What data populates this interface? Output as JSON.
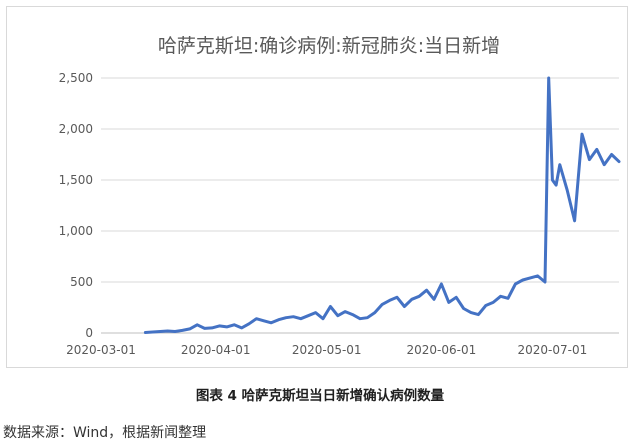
{
  "chart_data": {
    "type": "line",
    "title": "哈萨克斯坦:确诊病例:新冠肺炎:当日新增",
    "xlabel": "",
    "ylabel": "",
    "ylim": [
      0,
      2500
    ],
    "y_ticks": [
      "0",
      "500",
      "1,000",
      "1,500",
      "2,000",
      "2,500"
    ],
    "x_ticks": [
      "2020-03-01",
      "2020-04-01",
      "2020-05-01",
      "2020-06-01",
      "2020-07-01"
    ],
    "grid": true,
    "legend": "none",
    "line_color": "#4472C4",
    "series": [
      {
        "x": [
          "2020-03-13",
          "2020-03-15",
          "2020-03-17",
          "2020-03-19",
          "2020-03-21",
          "2020-03-23",
          "2020-03-25",
          "2020-03-27",
          "2020-03-29",
          "2020-03-31",
          "2020-04-02",
          "2020-04-04",
          "2020-04-06",
          "2020-04-08",
          "2020-04-10",
          "2020-04-12",
          "2020-04-14",
          "2020-04-16",
          "2020-04-18",
          "2020-04-20",
          "2020-04-22",
          "2020-04-24",
          "2020-04-26",
          "2020-04-28",
          "2020-04-30",
          "2020-05-02",
          "2020-05-04",
          "2020-05-06",
          "2020-05-08",
          "2020-05-10",
          "2020-05-12",
          "2020-05-14",
          "2020-05-16",
          "2020-05-18",
          "2020-05-20",
          "2020-05-22",
          "2020-05-24",
          "2020-05-26",
          "2020-05-28",
          "2020-05-30",
          "2020-06-01",
          "2020-06-03",
          "2020-06-05",
          "2020-06-07",
          "2020-06-09",
          "2020-06-11",
          "2020-06-13",
          "2020-06-15",
          "2020-06-17",
          "2020-06-19",
          "2020-06-21",
          "2020-06-23",
          "2020-06-25",
          "2020-06-27",
          "2020-06-29",
          "2020-06-30",
          "2020-07-01",
          "2020-07-02",
          "2020-07-03",
          "2020-07-05",
          "2020-07-07",
          "2020-07-09",
          "2020-07-11",
          "2020-07-13",
          "2020-07-15",
          "2020-07-17",
          "2020-07-19"
        ],
        "values": [
          5,
          10,
          15,
          20,
          15,
          25,
          40,
          80,
          45,
          50,
          70,
          60,
          80,
          50,
          90,
          140,
          120,
          100,
          130,
          150,
          160,
          140,
          170,
          200,
          140,
          260,
          170,
          210,
          180,
          140,
          150,
          200,
          280,
          320,
          350,
          260,
          330,
          360,
          420,
          330,
          480,
          300,
          350,
          240,
          200,
          180,
          270,
          300,
          360,
          340,
          480,
          520,
          540,
          560,
          500,
          2500,
          1500,
          1450,
          1650,
          1400,
          1100,
          1950,
          1700,
          1800,
          1650,
          1750,
          1680
        ]
      }
    ]
  },
  "caption": "图表 4 哈萨克斯坦当日新增确认病例数量",
  "source": "数据来源：Wind，根据新闻整理"
}
